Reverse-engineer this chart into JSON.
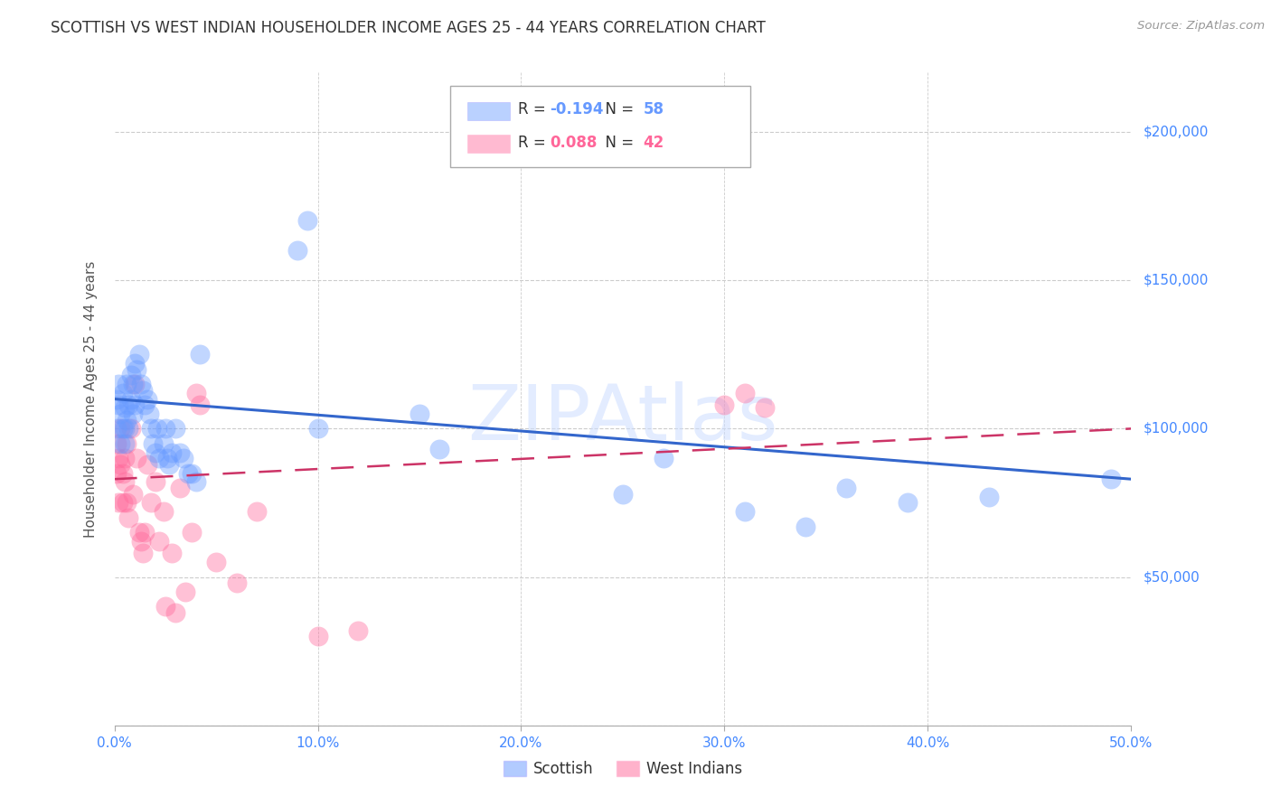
{
  "title": "SCOTTISH VS WEST INDIAN HOUSEHOLDER INCOME AGES 25 - 44 YEARS CORRELATION CHART",
  "source": "Source: ZipAtlas.com",
  "ylabel": "Householder Income Ages 25 - 44 years",
  "watermark": "ZIPAtlas",
  "scottish_r": -0.194,
  "scottish_n": 58,
  "westindian_r": 0.088,
  "westindian_n": 42,
  "scottish_color": "#6699FF",
  "westindian_color": "#FF6699",
  "scottish_x": [
    0.001,
    0.001,
    0.002,
    0.002,
    0.003,
    0.003,
    0.004,
    0.004,
    0.005,
    0.005,
    0.005,
    0.006,
    0.006,
    0.007,
    0.007,
    0.008,
    0.008,
    0.009,
    0.009,
    0.01,
    0.01,
    0.011,
    0.012,
    0.013,
    0.014,
    0.015,
    0.016,
    0.017,
    0.018,
    0.019,
    0.02,
    0.021,
    0.022,
    0.024,
    0.025,
    0.026,
    0.027,
    0.028,
    0.03,
    0.032,
    0.034,
    0.036,
    0.038,
    0.04,
    0.042,
    0.09,
    0.095,
    0.1,
    0.15,
    0.16,
    0.25,
    0.27,
    0.31,
    0.34,
    0.36,
    0.39,
    0.43,
    0.49
  ],
  "scottish_y": [
    100000,
    110000,
    108000,
    115000,
    105000,
    95000,
    112000,
    100000,
    107000,
    100000,
    95000,
    103000,
    115000,
    108000,
    100000,
    118000,
    110000,
    115000,
    105000,
    122000,
    108000,
    120000,
    125000,
    115000,
    113000,
    108000,
    110000,
    105000,
    100000,
    95000,
    92000,
    100000,
    90000,
    95000,
    100000,
    90000,
    88000,
    92000,
    100000,
    92000,
    90000,
    85000,
    85000,
    82000,
    125000,
    160000,
    170000,
    100000,
    105000,
    93000,
    78000,
    90000,
    72000,
    67000,
    80000,
    75000,
    77000,
    83000
  ],
  "westindian_x": [
    0.001,
    0.001,
    0.002,
    0.002,
    0.003,
    0.003,
    0.004,
    0.004,
    0.005,
    0.005,
    0.006,
    0.006,
    0.007,
    0.008,
    0.009,
    0.01,
    0.011,
    0.012,
    0.013,
    0.014,
    0.015,
    0.016,
    0.018,
    0.02,
    0.022,
    0.024,
    0.028,
    0.032,
    0.035,
    0.038,
    0.04,
    0.042,
    0.3,
    0.31,
    0.32,
    0.025,
    0.03,
    0.05,
    0.06,
    0.07,
    0.1,
    0.12
  ],
  "westindian_y": [
    85000,
    95000,
    90000,
    75000,
    100000,
    88000,
    85000,
    75000,
    82000,
    90000,
    95000,
    75000,
    70000,
    100000,
    78000,
    115000,
    90000,
    65000,
    62000,
    58000,
    65000,
    88000,
    75000,
    82000,
    62000,
    72000,
    58000,
    80000,
    45000,
    65000,
    112000,
    108000,
    108000,
    112000,
    107000,
    40000,
    38000,
    55000,
    48000,
    72000,
    30000,
    32000
  ],
  "ylim": [
    0,
    220000
  ],
  "yticks": [
    0,
    50000,
    100000,
    150000,
    200000
  ],
  "ytick_labels": [
    "",
    "$50,000",
    "$100,000",
    "$150,000",
    "$200,000"
  ],
  "xlim": [
    0.0,
    0.5
  ],
  "xticks": [
    0.0,
    0.1,
    0.2,
    0.3,
    0.4,
    0.5
  ],
  "xtick_labels": [
    "0.0%",
    "10.0%",
    "20.0%",
    "30.0%",
    "40.0%",
    "50.0%"
  ],
  "background_color": "#ffffff",
  "grid_color": "#cccccc",
  "title_color": "#333333",
  "axis_label_color": "#555555",
  "ytick_color": "#4488ff",
  "xtick_color": "#4488ff",
  "legend_blue_label": "Scottish",
  "legend_pink_label": "West Indians"
}
